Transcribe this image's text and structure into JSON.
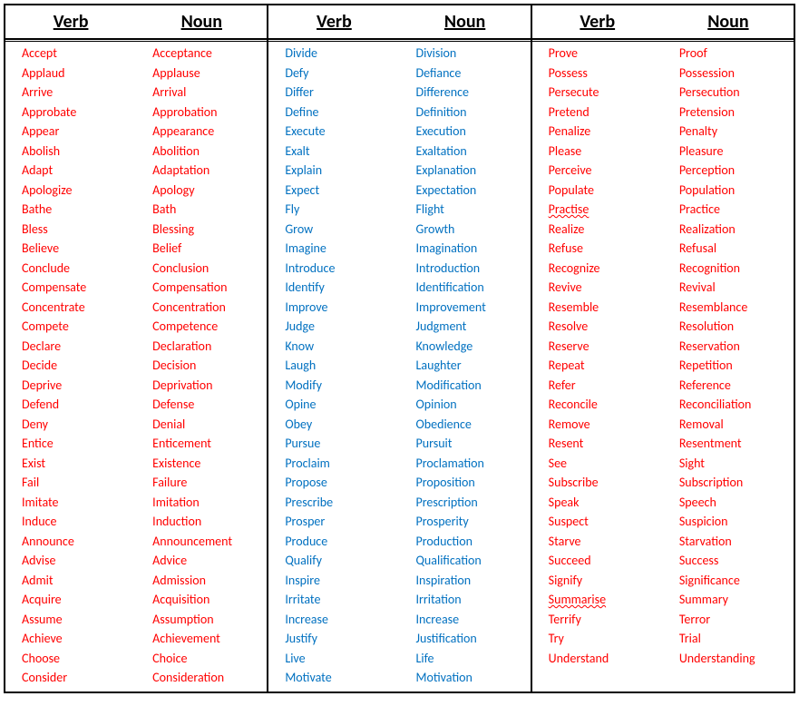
{
  "headers": {
    "verb": "Verb",
    "noun": "Noun"
  },
  "colors": {
    "red": "#ff0000",
    "blue": "#0070c0",
    "black": "#000000",
    "bg": "#ffffff"
  },
  "font": {
    "family": "Calibri",
    "header_size_pt": 20,
    "cell_size_pt": 14,
    "header_weight": "bold"
  },
  "columns": [
    {
      "color": "red",
      "rows": [
        {
          "verb": "Accept",
          "noun": "Acceptance"
        },
        {
          "verb": "Applaud",
          "noun": "Applause"
        },
        {
          "verb": "Arrive",
          "noun": "Arrival"
        },
        {
          "verb": "Approbate",
          "noun": "Approbation"
        },
        {
          "verb": "Appear",
          "noun": "Appearance"
        },
        {
          "verb": "Abolish",
          "noun": "Abolition"
        },
        {
          "verb": "Adapt",
          "noun": "Adaptation"
        },
        {
          "verb": "Apologize",
          "noun": "Apology"
        },
        {
          "verb": "Bathe",
          "noun": "Bath"
        },
        {
          "verb": "Bless",
          "noun": "Blessing"
        },
        {
          "verb": "Believe",
          "noun": "Belief"
        },
        {
          "verb": "Conclude",
          "noun": "Conclusion"
        },
        {
          "verb": "Compensate",
          "noun": "Compensation"
        },
        {
          "verb": "Concentrate",
          "noun": "Concentration"
        },
        {
          "verb": "Compete",
          "noun": "Competence"
        },
        {
          "verb": "Declare",
          "noun": "Declaration"
        },
        {
          "verb": "Decide",
          "noun": "Decision"
        },
        {
          "verb": "Deprive",
          "noun": "Deprivation"
        },
        {
          "verb": "Defend",
          "noun": "Defense"
        },
        {
          "verb": "Deny",
          "noun": "Denial"
        },
        {
          "verb": "Entice",
          "noun": "Enticement"
        },
        {
          "verb": "Exist",
          "noun": "Existence"
        },
        {
          "verb": "Fail",
          "noun": "Failure"
        },
        {
          "verb": "Imitate",
          "noun": "Imitation"
        },
        {
          "verb": "Induce",
          "noun": "Induction"
        },
        {
          "verb": "Announce",
          "noun": "Announcement"
        },
        {
          "verb": "Advise",
          "noun": "Advice"
        },
        {
          "verb": "Admit",
          "noun": "Admission"
        },
        {
          "verb": "Acquire",
          "noun": "Acquisition"
        },
        {
          "verb": "Assume",
          "noun": "Assumption"
        },
        {
          "verb": "Achieve",
          "noun": "Achievement"
        },
        {
          "verb": "Choose",
          "noun": "Choice"
        },
        {
          "verb": "Consider",
          "noun": "Consideration"
        }
      ]
    },
    {
      "color": "blue",
      "rows": [
        {
          "verb": "Divide",
          "noun": "Division"
        },
        {
          "verb": "Defy",
          "noun": "Defiance"
        },
        {
          "verb": "Differ",
          "noun": "Difference"
        },
        {
          "verb": "Define",
          "noun": "Definition"
        },
        {
          "verb": "Execute",
          "noun": "Execution"
        },
        {
          "verb": "Exalt",
          "noun": "Exaltation"
        },
        {
          "verb": "Explain",
          "noun": "Explanation"
        },
        {
          "verb": "Expect",
          "noun": "Expectation"
        },
        {
          "verb": "Fly",
          "noun": "Flight"
        },
        {
          "verb": "Grow",
          "noun": "Growth"
        },
        {
          "verb": "Imagine",
          "noun": "Imagination"
        },
        {
          "verb": "Introduce",
          "noun": "Introduction"
        },
        {
          "verb": "Identify",
          "noun": "Identification"
        },
        {
          "verb": "Improve",
          "noun": "Improvement"
        },
        {
          "verb": "Judge",
          "noun": "Judgment"
        },
        {
          "verb": "Know",
          "noun": "Knowledge"
        },
        {
          "verb": "Laugh",
          "noun": "Laughter"
        },
        {
          "verb": "Modify",
          "noun": "Modification"
        },
        {
          "verb": "Opine",
          "noun": "Opinion"
        },
        {
          "verb": "Obey",
          "noun": "Obedience"
        },
        {
          "verb": "Pursue",
          "noun": "Pursuit"
        },
        {
          "verb": "Proclaim",
          "noun": "Proclamation"
        },
        {
          "verb": "Propose",
          "noun": "Proposition"
        },
        {
          "verb": "Prescribe",
          "noun": "Prescription"
        },
        {
          "verb": "Prosper",
          "noun": "Prosperity"
        },
        {
          "verb": "Produce",
          "noun": "Production"
        },
        {
          "verb": "Qualify",
          "noun": "Qualification"
        },
        {
          "verb": "Inspire",
          "noun": "Inspiration"
        },
        {
          "verb": "Irritate",
          "noun": "Irritation"
        },
        {
          "verb": "Increase",
          "noun": "Increase"
        },
        {
          "verb": "Justify",
          "noun": "Justification"
        },
        {
          "verb": "Live",
          "noun": "Life"
        },
        {
          "verb": "Motivate",
          "noun": "Motivation"
        }
      ]
    },
    {
      "color": "red",
      "rows": [
        {
          "verb": "Prove",
          "noun": "Proof"
        },
        {
          "verb": "Possess",
          "noun": "Possession"
        },
        {
          "verb": "Persecute",
          "noun": "Persecution"
        },
        {
          "verb": "Pretend",
          "noun": "Pretension"
        },
        {
          "verb": "Penalize",
          "noun": "Penalty"
        },
        {
          "verb": "Please",
          "noun": "Pleasure"
        },
        {
          "verb": "Perceive",
          "noun": "Perception"
        },
        {
          "verb": "Populate",
          "noun": "Population"
        },
        {
          "verb": "Practise",
          "noun": "Practice",
          "verb_squiggle": true
        },
        {
          "verb": "Realize",
          "noun": "Realization"
        },
        {
          "verb": "Refuse",
          "noun": "Refusal"
        },
        {
          "verb": "Recognize",
          "noun": "Recognition"
        },
        {
          "verb": "Revive",
          "noun": "Revival"
        },
        {
          "verb": "Resemble",
          "noun": "Resemblance"
        },
        {
          "verb": "Resolve",
          "noun": "Resolution"
        },
        {
          "verb": "Reserve",
          "noun": "Reservation"
        },
        {
          "verb": "Repeat",
          "noun": "Repetition"
        },
        {
          "verb": "Refer",
          "noun": "Reference"
        },
        {
          "verb": "Reconcile",
          "noun": "Reconciliation"
        },
        {
          "verb": "Remove",
          "noun": "Removal"
        },
        {
          "verb": "Resent",
          "noun": "Resentment"
        },
        {
          "verb": "See",
          "noun": "Sight"
        },
        {
          "verb": "Subscribe",
          "noun": "Subscription"
        },
        {
          "verb": "Speak",
          "noun": "Speech"
        },
        {
          "verb": "Suspect",
          "noun": "Suspicion"
        },
        {
          "verb": "Starve",
          "noun": "Starvation"
        },
        {
          "verb": "Succeed",
          "noun": "Success"
        },
        {
          "verb": "Signify",
          "noun": "Significance"
        },
        {
          "verb": "Summarise",
          "noun": "Summary",
          "verb_squiggle": true
        },
        {
          "verb": "Terrify",
          "noun": "Terror"
        },
        {
          "verb": "Try",
          "noun": "Trial"
        },
        {
          "verb": "Understand",
          "noun": "Understanding"
        }
      ]
    }
  ]
}
